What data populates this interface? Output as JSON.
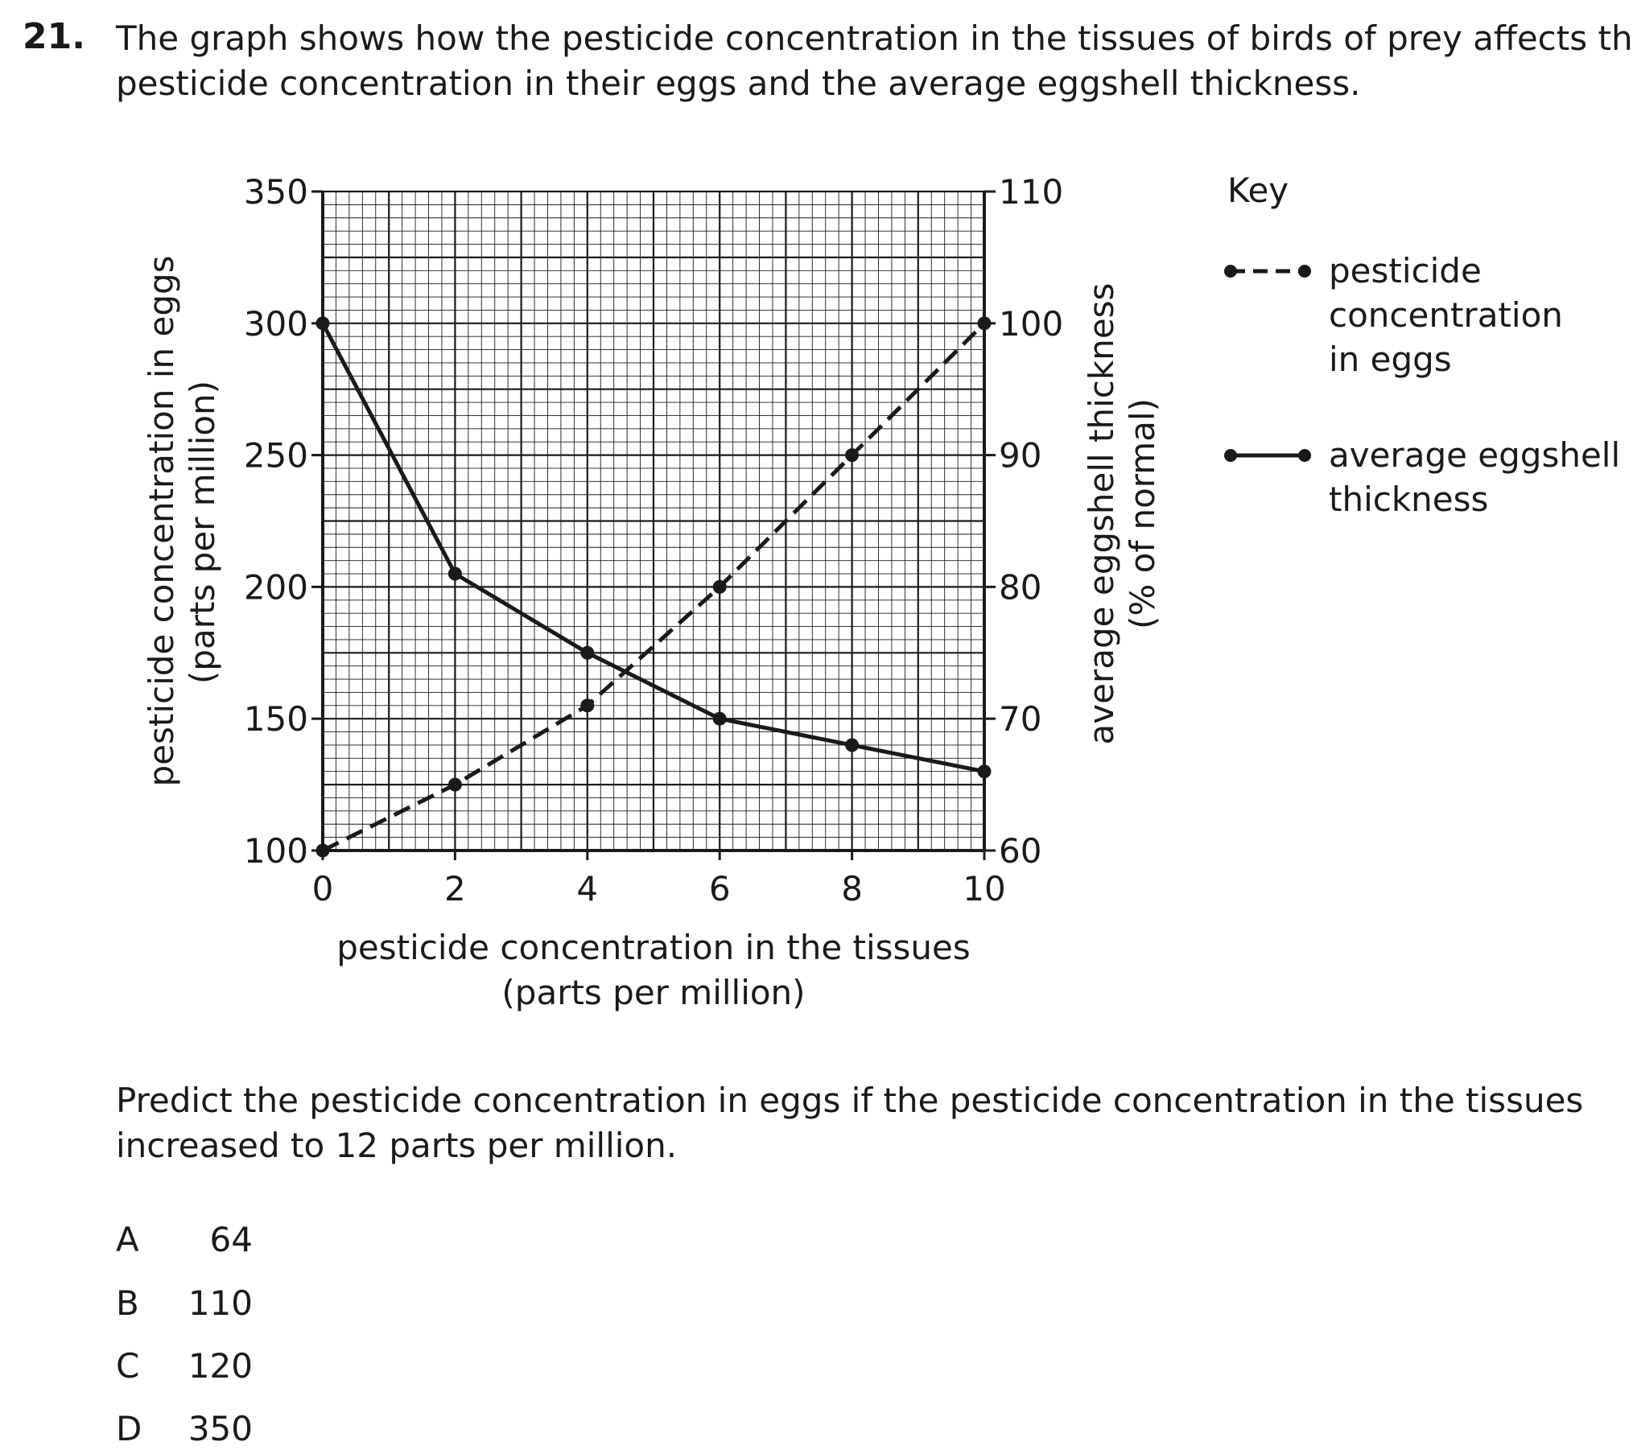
{
  "question": {
    "number": "21.",
    "stem_lines": [
      "The graph shows how the pesticide concentration in the tissues of birds of prey affects the",
      "pesticide concentration in their eggs and the average eggshell thickness."
    ],
    "prompt_lines": [
      "Predict the pesticide concentration in eggs if the pesticide concentration in the tissues",
      "increased to 12 parts per million."
    ],
    "options": [
      {
        "letter": "A",
        "value": "64"
      },
      {
        "letter": "B",
        "value": "110"
      },
      {
        "letter": "C",
        "value": "120"
      },
      {
        "letter": "D",
        "value": "350"
      }
    ]
  },
  "chart_data": {
    "type": "line",
    "xlabel_lines": [
      "pesticide concentration in the tissues",
      "(parts per million)"
    ],
    "ylabel_left_lines": [
      "pesticide concentration in eggs",
      "(parts per million)"
    ],
    "ylabel_right_lines": [
      "average eggshell thickness",
      "(% of normal)"
    ],
    "xlim": [
      0,
      10
    ],
    "ylim_left": [
      100,
      350
    ],
    "ylim_right": [
      60,
      110
    ],
    "x_ticks": [
      0,
      2,
      4,
      6,
      8,
      10
    ],
    "y_left_ticks": [
      100,
      150,
      200,
      250,
      300,
      350
    ],
    "y_right_ticks": [
      60,
      70,
      80,
      90,
      100,
      110
    ],
    "grid": true,
    "legend_title": "Key",
    "legend_position": "right",
    "series": [
      {
        "name_lines": [
          "pesticide",
          "concentration",
          "in eggs"
        ],
        "axis": "left",
        "style": "dashed",
        "x": [
          0,
          2,
          4,
          6,
          8,
          10
        ],
        "values": [
          100,
          125,
          155,
          200,
          250,
          300
        ]
      },
      {
        "name_lines": [
          "average eggshell",
          "thickness"
        ],
        "axis": "right",
        "style": "solid",
        "x": [
          0,
          2,
          4,
          6,
          8,
          10
        ],
        "values": [
          100,
          81,
          75,
          70,
          68,
          66
        ]
      }
    ],
    "colors": {
      "ink": "#1a1a1a"
    }
  }
}
